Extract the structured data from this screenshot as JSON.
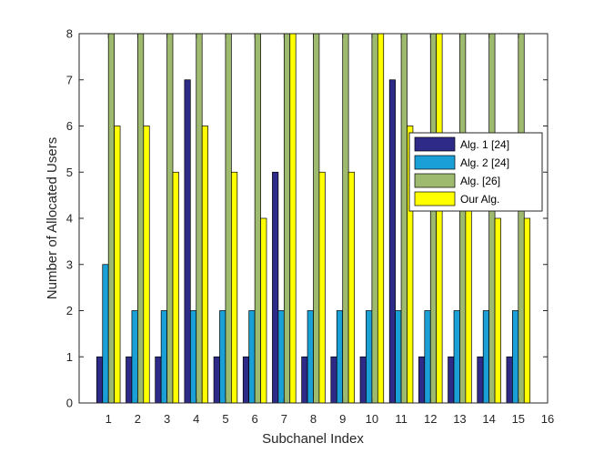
{
  "chart_data": {
    "type": "bar",
    "title": "",
    "xlabel": "Subchanel Index",
    "ylabel": "Number of Allocated Users",
    "xlim": [
      0,
      16
    ],
    "ylim": [
      0,
      8
    ],
    "x_ticks": [
      "1",
      "2",
      "3",
      "4",
      "5",
      "6",
      "7",
      "8",
      "9",
      "10",
      "11",
      "12",
      "13",
      "14",
      "15",
      "16"
    ],
    "y_ticks": [
      "0",
      "1",
      "2",
      "3",
      "4",
      "5",
      "6",
      "7",
      "8"
    ],
    "categories": [
      1,
      2,
      3,
      4,
      5,
      6,
      7,
      8,
      9,
      10,
      11,
      12,
      13,
      14,
      15
    ],
    "series": [
      {
        "name": "Alg. 1 [24]",
        "color": "#2e2a87",
        "values": [
          1,
          1,
          1,
          7,
          1,
          1,
          5,
          1,
          1,
          1,
          7,
          1,
          1,
          1,
          1
        ]
      },
      {
        "name": "Alg. 2 [24]",
        "color": "#1aa0d6",
        "values": [
          3,
          2,
          2,
          2,
          2,
          2,
          2,
          2,
          2,
          2,
          2,
          2,
          2,
          2,
          2
        ]
      },
      {
        "name": "Alg. [26]",
        "color": "#9eba6e",
        "values": [
          8,
          8,
          8,
          8,
          8,
          8,
          8,
          8,
          8,
          8,
          8,
          8,
          8,
          8,
          8
        ]
      },
      {
        "name": "Our Alg.",
        "color": "#ffff00",
        "values": [
          6,
          6,
          5,
          6,
          5,
          4,
          8,
          5,
          5,
          8,
          6,
          8,
          5,
          4,
          4
        ]
      }
    ],
    "legend_position": "right-middle",
    "grid": false
  }
}
